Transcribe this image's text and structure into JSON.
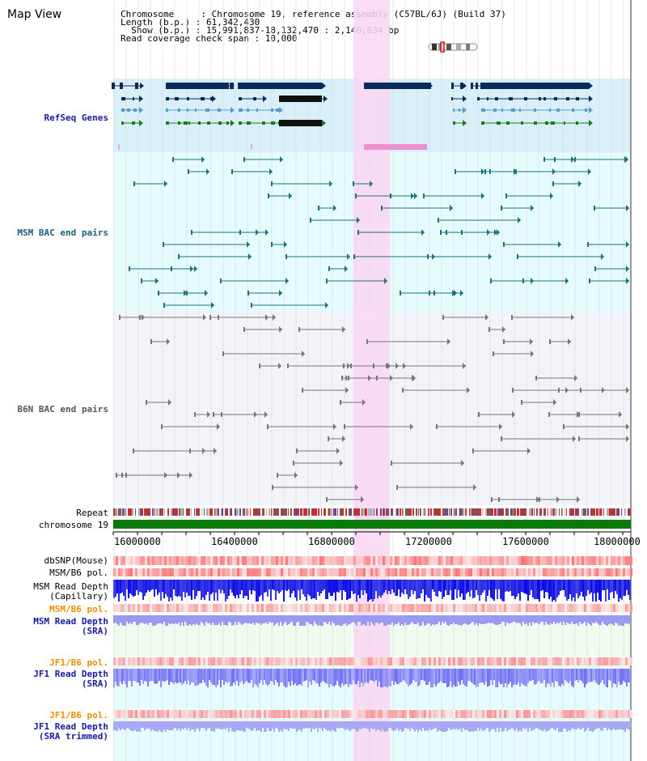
{
  "header": {
    "title": "Map View",
    "info_lines": [
      "Chromosome     : Chromosome 19, reference assembly (C57BL/6J) (Build 37)",
      "Length (b.p.) : 61,342,430",
      "  Show (b.p.) : 15,991,837-18,132,470 : 2,140,634 bp",
      "Read coverage check span : 10,000"
    ]
  },
  "tracks": {
    "refseq": "RefSeq Genes",
    "msm_bac": "MSM BAC end pairs",
    "b6n_bac": "B6N BAC end pairs",
    "repeat": "Repeat",
    "chromosome": "chromosome 19",
    "dbsnp": "dbSNP(Mouse)",
    "msm_b6_pol_1": "MSM/B6 pol.",
    "msm_read_depth_cap": "MSM Read Depth",
    "capillary": "(Capillary)",
    "msm_b6_pol_2": "MSM/B6 pol.",
    "msm_read_depth_sra": "MSM Read Depth",
    "sra1": "(SRA)",
    "jf1_b6_pol_1": "JF1/B6 pol.",
    "jf1_read_depth": "JF1 Read Depth",
    "sra2": "(SRA)",
    "jf1_b6_pol_2": "JF1/B6 pol.",
    "jf1_read_depth_trim": "JF1 Read Depth",
    "sra_trimmed": "(SRA trimmed)"
  },
  "axis": {
    "ticks": [
      "16000000",
      "16400000",
      "16800000",
      "17200000",
      "17600000",
      "18000000"
    ]
  },
  "colors": {
    "highlight": "#f9d6f2",
    "refseq_bg": "#d9f0fa",
    "msm_bg": "#e6fbfb",
    "b6n_bg": "#f3f3fa",
    "gene_dark": "#0a2a5a",
    "gene_light": "#5a9ac8",
    "gene_green": "#1f7a1f",
    "msm_line": "#1e7080",
    "b6n_line": "#777777",
    "chrom_bar": "#0a7a0a",
    "label_blue": "#1a1aa0",
    "label_teal": "#156080",
    "label_orange": "#e89000"
  }
}
